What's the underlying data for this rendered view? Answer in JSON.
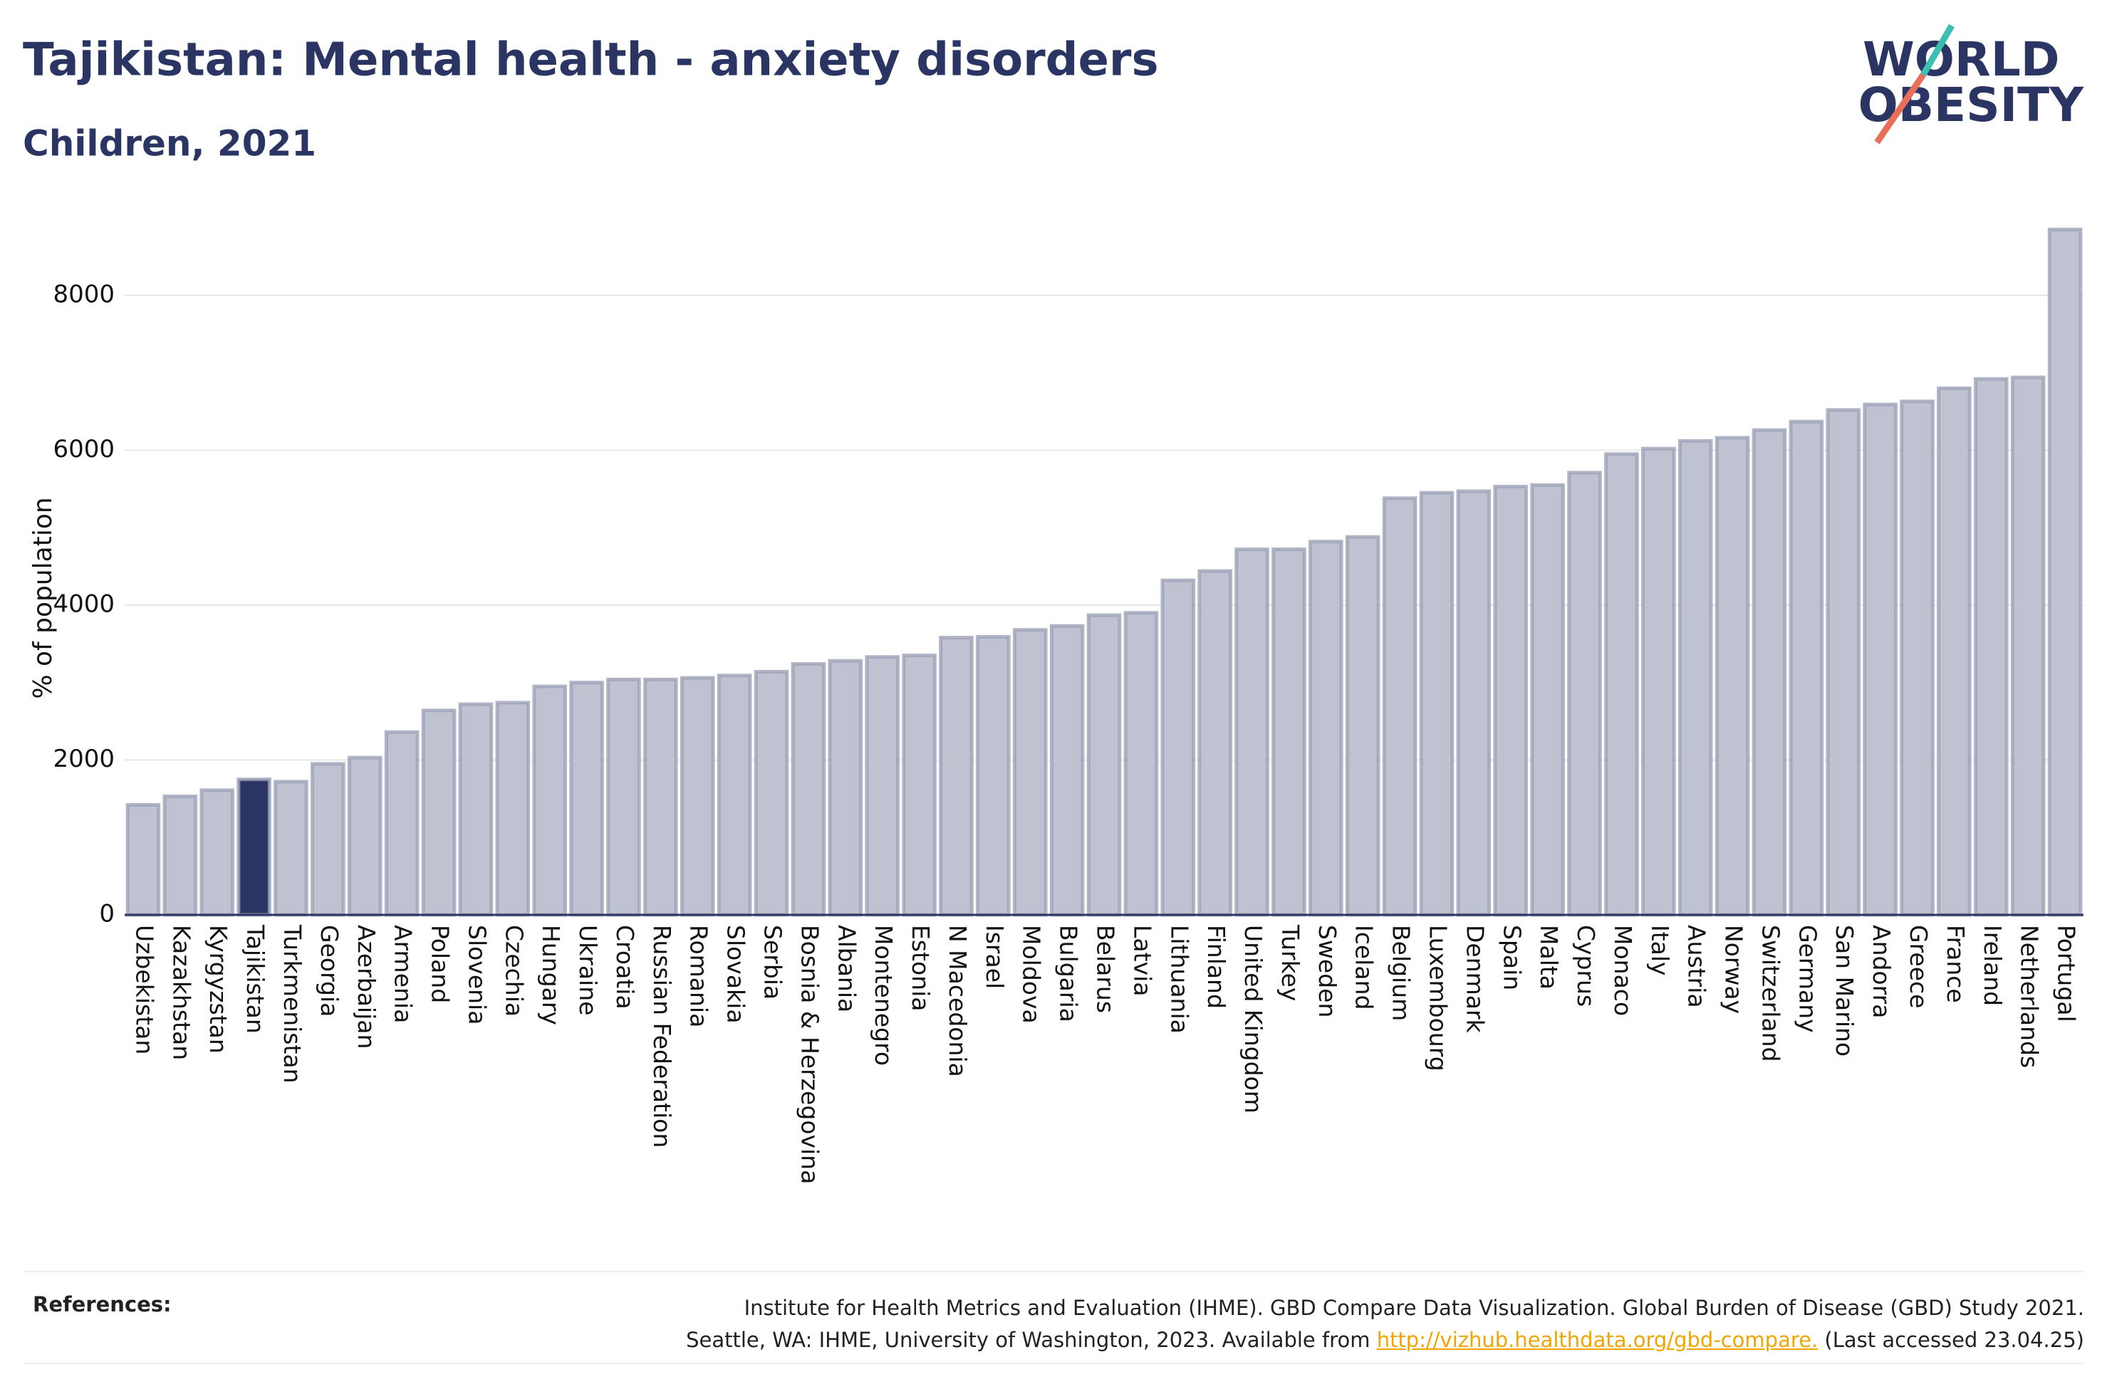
{
  "chart_data": {
    "type": "bar",
    "title": "Tajikistan: Mental health - anxiety disorders",
    "subtitle": "Children, 2021",
    "y_label": "% of population",
    "categories": [
      "Uzbekistan",
      "Kazakhstan",
      "Kyrgyzstan",
      "Tajikistan",
      "Turkmenistan",
      "Georgia",
      "Azerbaijan",
      "Armenia",
      "Poland",
      "Slovenia",
      "Czechia",
      "Hungary",
      "Ukraine",
      "Croatia",
      "Russian Federation",
      "Romania",
      "Slovakia",
      "Serbia",
      "Bosnia & Herzegovina",
      "Albania",
      "Montenegro",
      "Estonia",
      "N Macedonia",
      "Israel",
      "Moldova",
      "Bulgaria",
      "Belarus",
      "Latvia",
      "Lithuania",
      "Finland",
      "United Kingdom",
      "Turkey",
      "Sweden",
      "Iceland",
      "Belgium",
      "Luxembourg",
      "Denmark",
      "Spain",
      "Malta",
      "Cyprus",
      "Monaco",
      "Italy",
      "Austria",
      "Norway",
      "Switzerland",
      "Germany",
      "San Marino",
      "Andorra",
      "Greece",
      "France",
      "Ireland",
      "Netherlands",
      "Portugal"
    ],
    "values": [
      1420,
      1530,
      1610,
      1750,
      1720,
      1950,
      2030,
      2360,
      2640,
      2720,
      2740,
      2950,
      3000,
      3040,
      3040,
      3060,
      3090,
      3140,
      3240,
      3280,
      3330,
      3350,
      3580,
      3590,
      3680,
      3730,
      3870,
      3900,
      4320,
      4440,
      4720,
      4720,
      4820,
      4880,
      5380,
      5450,
      5470,
      5530,
      5550,
      5710,
      5950,
      6020,
      6120,
      6160,
      6260,
      6370,
      6520,
      6590,
      6630,
      6800,
      6920,
      6940,
      8850
    ],
    "color": "#bfc3d1",
    "edge_color": "#9ea3b8",
    "highlight": "Tajikistan",
    "highlight_color": "#2b3563",
    "ylim": [
      0,
      9000
    ],
    "yticks": [
      0,
      2000,
      4000,
      6000,
      8000
    ],
    "grid": true
  },
  "logo": {
    "line1": "WORLD",
    "line2": "OBESITY"
  },
  "references": {
    "label": "References:",
    "line1": "Institute for Health Metrics and Evaluation (IHME). GBD Compare Data Visualization. Global Burden of Disease (GBD) Study 2021.",
    "line2_before": "Seattle, WA: IHME, University of Washington, 2023. Available from",
    "link": "http://vizhub.healthdata.org/gbd-compare.",
    "line2_after": "(Last accessed 23.04.25)"
  }
}
